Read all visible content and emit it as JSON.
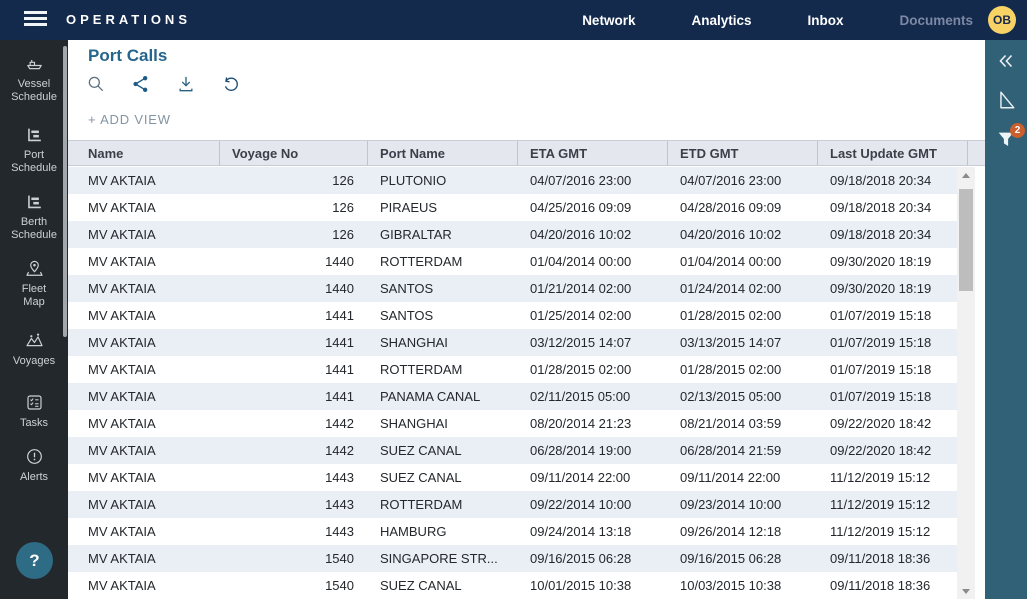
{
  "topbar": {
    "brand": "OPERATIONS",
    "nav": [
      {
        "label": "Network",
        "muted": false
      },
      {
        "label": "Analytics",
        "muted": false
      },
      {
        "label": "Inbox",
        "muted": false
      },
      {
        "label": "Documents",
        "muted": true
      }
    ],
    "avatar_initials": "OB"
  },
  "sidebar": {
    "items": [
      {
        "id": "vessel-schedule",
        "icon": "ship",
        "label_lines": [
          "Vessel",
          "Schedule"
        ]
      },
      {
        "id": "port-schedule",
        "icon": "gantt",
        "label_lines": [
          "Port",
          "Schedule"
        ]
      },
      {
        "id": "berth-schedule",
        "icon": "gantt",
        "label_lines": [
          "Berth",
          "Schedule"
        ]
      },
      {
        "id": "fleet-map",
        "icon": "map-pin",
        "label_lines": [
          "Fleet",
          "Map"
        ]
      },
      {
        "id": "voyages",
        "icon": "route",
        "label_lines": [
          "Voyages"
        ]
      },
      {
        "id": "tasks",
        "icon": "checklist",
        "label_lines": [
          "Tasks"
        ]
      },
      {
        "id": "alerts",
        "icon": "alert",
        "label_lines": [
          "Alerts"
        ]
      }
    ],
    "help_label": "?"
  },
  "main": {
    "title": "Port Calls",
    "toolbar_icons": [
      "search",
      "share",
      "download",
      "reset"
    ],
    "add_view_label": "+ ADD VIEW",
    "table": {
      "columns": [
        "Name",
        "Voyage No",
        "Port Name",
        "ETA GMT",
        "ETD GMT",
        "Last Update GMT"
      ],
      "rows": [
        [
          "MV AKTAIA",
          "126",
          "PLUTONIO",
          "04/07/2016 23:00",
          "04/07/2016 23:00",
          "09/18/2018 20:34"
        ],
        [
          "MV AKTAIA",
          "126",
          "PIRAEUS",
          "04/25/2016 09:09",
          "04/28/2016 09:09",
          "09/18/2018 20:34"
        ],
        [
          "MV AKTAIA",
          "126",
          "GIBRALTAR",
          "04/20/2016 10:02",
          "04/20/2016 10:02",
          "09/18/2018 20:34"
        ],
        [
          "MV AKTAIA",
          "1440",
          "ROTTERDAM",
          "01/04/2014 00:00",
          "01/04/2014 00:00",
          "09/30/2020 18:19"
        ],
        [
          "MV AKTAIA",
          "1440",
          "SANTOS",
          "01/21/2014 02:00",
          "01/24/2014 02:00",
          "09/30/2020 18:19"
        ],
        [
          "MV AKTAIA",
          "1441",
          "SANTOS",
          "01/25/2014 02:00",
          "01/28/2015 02:00",
          "01/07/2019 15:18"
        ],
        [
          "MV AKTAIA",
          "1441",
          "SHANGHAI",
          "03/12/2015 14:07",
          "03/13/2015 14:07",
          "01/07/2019 15:18"
        ],
        [
          "MV AKTAIA",
          "1441",
          "ROTTERDAM",
          "01/28/2015 02:00",
          "01/28/2015 02:00",
          "01/07/2019 15:18"
        ],
        [
          "MV AKTAIA",
          "1441",
          "PANAMA CANAL",
          "02/11/2015 05:00",
          "02/13/2015 05:00",
          "01/07/2019 15:18"
        ],
        [
          "MV AKTAIA",
          "1442",
          "SHANGHAI",
          "08/20/2014 21:23",
          "08/21/2014 03:59",
          "09/22/2020 18:42"
        ],
        [
          "MV AKTAIA",
          "1442",
          "SUEZ CANAL",
          "06/28/2014 19:00",
          "06/28/2014 21:59",
          "09/22/2020 18:42"
        ],
        [
          "MV AKTAIA",
          "1443",
          "SUEZ CANAL",
          "09/11/2014 22:00",
          "09/11/2014 22:00",
          "11/12/2019 15:12"
        ],
        [
          "MV AKTAIA",
          "1443",
          "ROTTERDAM",
          "09/22/2014 10:00",
          "09/23/2014 10:00",
          "11/12/2019 15:12"
        ],
        [
          "MV AKTAIA",
          "1443",
          "HAMBURG",
          "09/24/2014 13:18",
          "09/26/2014 12:18",
          "11/12/2019 15:12"
        ],
        [
          "MV AKTAIA",
          "1540",
          "SINGAPORE STR...",
          "09/16/2015 06:28",
          "09/16/2015 06:28",
          "09/11/2018 18:36"
        ],
        [
          "MV AKTAIA",
          "1540",
          "SUEZ CANAL",
          "10/01/2015 10:38",
          "10/03/2015 10:38",
          "09/11/2018 18:36"
        ]
      ]
    }
  },
  "right_panel": {
    "icons": [
      "collapse",
      "measure",
      "filter"
    ],
    "filter_badge_count": "2"
  },
  "colors": {
    "topbar_bg": "#132a4d",
    "sidebar_bg": "#23282c",
    "right_panel_bg": "#306177",
    "help_button_bg": "#2e6b84",
    "title_color": "#26658c",
    "avatar_bg": "#f7d366",
    "badge_orange": "#cb5f2d",
    "row_alt_bg": "#e9eff5",
    "header_bg": "#e4e7ee"
  }
}
